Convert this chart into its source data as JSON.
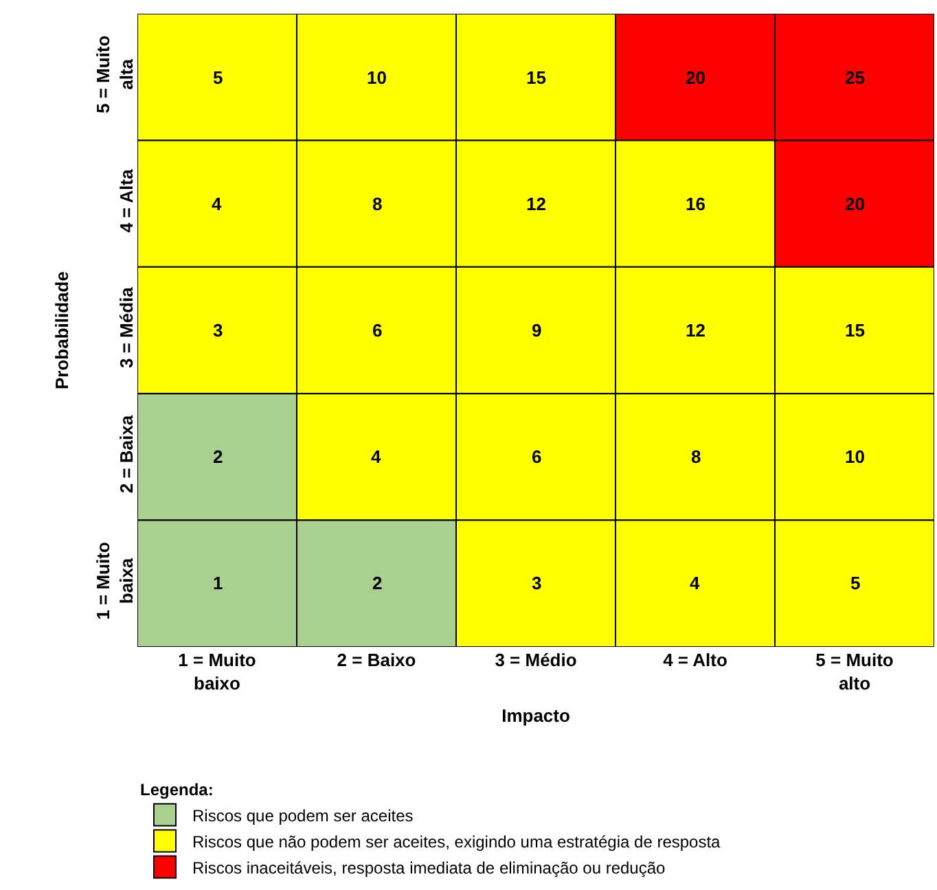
{
  "chart_data": {
    "type": "heatmap",
    "xlabel": "Impacto",
    "ylabel": "Probabilidade",
    "categories": [
      "1 = Muito baixo",
      "2 = Baixo",
      "3 = Médio",
      "4 = Alto",
      "5 = Muito alto"
    ],
    "y_categories": [
      "5 = Muito alta",
      "4 = Alta",
      "3 = Média",
      "2 = Baixa",
      "1 = Muito baixa"
    ],
    "cells": [
      [
        5,
        10,
        15,
        20,
        25
      ],
      [
        4,
        8,
        12,
        16,
        20
      ],
      [
        3,
        6,
        9,
        12,
        15
      ],
      [
        2,
        4,
        6,
        8,
        10
      ],
      [
        1,
        2,
        3,
        4,
        5
      ]
    ],
    "colors": [
      [
        "#ffff00",
        "#ffff00",
        "#ffff00",
        "#ff0000",
        "#ff0000"
      ],
      [
        "#ffff00",
        "#ffff00",
        "#ffff00",
        "#ffff00",
        "#ff0000"
      ],
      [
        "#ffff00",
        "#ffff00",
        "#ffff00",
        "#ffff00",
        "#ffff00"
      ],
      [
        "#a9d08e",
        "#ffff00",
        "#ffff00",
        "#ffff00",
        "#ffff00"
      ],
      [
        "#a9d08e",
        "#a9d08e",
        "#ffff00",
        "#ffff00",
        "#ffff00"
      ]
    ],
    "data_labels": true,
    "legend": "bottom left",
    "legend_title": "Legenda:",
    "series": [
      {
        "name": "Riscos que podem ser aceites",
        "color": "#a9d08e",
        "values": [
          null,
          null,
          null,
          null,
          null
        ]
      },
      {
        "name": "Riscos que não podem ser aceites, exigindo uma estratégia de resposta",
        "color": "#ffff00",
        "values": [
          null,
          null,
          null,
          null,
          null
        ]
      },
      {
        "name": "Riscos inaceitáveis, resposta imediata de eliminação ou redução",
        "color": "#ff0000",
        "values": [
          null,
          null,
          null,
          null,
          null
        ]
      }
    ]
  }
}
